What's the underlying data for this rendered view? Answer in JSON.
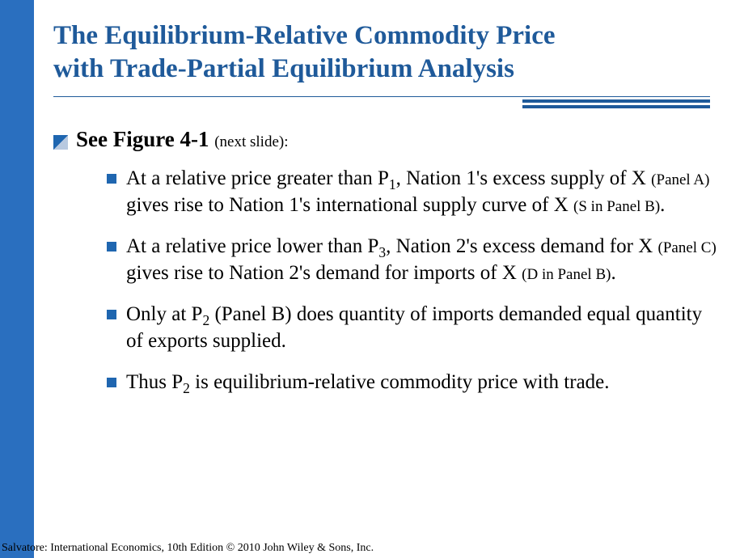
{
  "colors": {
    "accent": "#1f66b0",
    "title": "#1f5a9a",
    "leftbar": "#2a6fbf",
    "rule": "#1f5a9a"
  },
  "title_line1": "The Equilibrium-Relative Commodity Price",
  "title_line2": "with Trade-Partial Equilibrium Analysis",
  "main_bullet": {
    "bold": "See Figure 4-1",
    "note": "(next slide):"
  },
  "items": [
    {
      "pre": "At a relative price greater than P",
      "sub1": "1",
      "mid1": ", Nation 1's excess supply of X ",
      "panelA": "(Panel A)",
      "mid2": " gives rise to Nation 1's international supply curve of X ",
      "panelB": "(S in Panel B)",
      "end": "."
    },
    {
      "pre": "At a relative price lower than P",
      "sub1": "3",
      "mid1": ", Nation 2's excess demand for X ",
      "panelA": "(Panel C)",
      "mid2": " gives rise to Nation 2's demand for imports of X ",
      "panelB": "(D in Panel B)",
      "end": "."
    },
    {
      "pre": "Only at P",
      "sub1": "2",
      "mid1": " (Panel B) does quantity of imports demanded equal quantity of exports supplied.",
      "panelA": "",
      "mid2": "",
      "panelB": "",
      "end": ""
    },
    {
      "pre": "Thus P",
      "sub1": "2",
      "mid1": " is equilibrium-relative commodity price with trade.",
      "panelA": "",
      "mid2": "",
      "panelB": "",
      "end": ""
    }
  ],
  "footer": "Salvatore: International Economics, 10th Edition  © 2010 John Wiley & Sons, Inc."
}
